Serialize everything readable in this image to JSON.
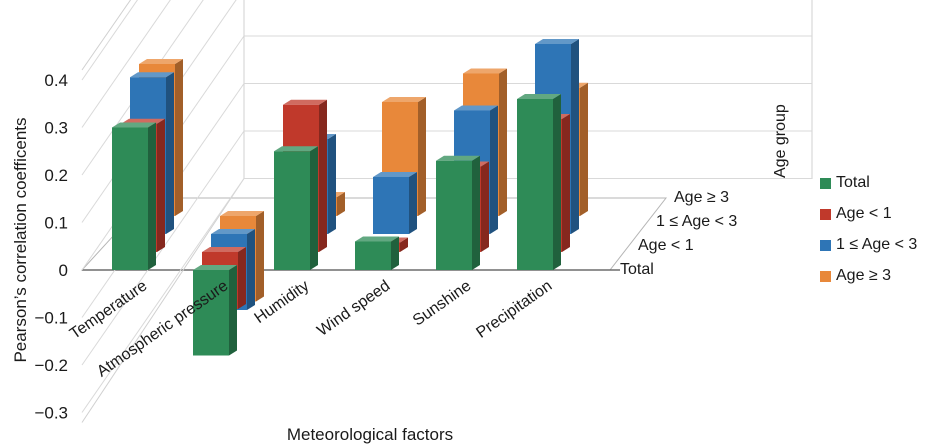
{
  "chart_data": {
    "type": "bar",
    "subtype": "3d-grouped",
    "title": "",
    "xlabel": "Meteorological factors",
    "ylabel": "Pearson’s correlation coefficents",
    "depth_label": "Age group",
    "categories": [
      "Temperature",
      "Atmospheric pressure",
      "Humidity",
      "Wind speed",
      "Sunshine",
      "Precipitation"
    ],
    "depth_categories": [
      "Total",
      "Age < 1",
      "1 ≤ Age < 3",
      "Age ≥ 3"
    ],
    "series": [
      {
        "name": "Total",
        "color": "#2e8b57",
        "values": [
          0.3,
          -0.18,
          0.25,
          0.06,
          0.23,
          0.36
        ]
      },
      {
        "name": "Age < 1",
        "color": "#c0392b",
        "values": [
          0.27,
          -0.12,
          0.31,
          0.02,
          0.18,
          0.28
        ]
      },
      {
        "name": "1 ≤ Age < 3",
        "color": "#2e75b6",
        "values": [
          0.33,
          -0.16,
          0.2,
          0.12,
          0.26,
          0.4
        ]
      },
      {
        "name": "Age ≥ 3",
        "color": "#e8883a",
        "values": [
          0.32,
          -0.18,
          0.04,
          0.24,
          0.3,
          0.27
        ]
      }
    ],
    "ylim": [
      -0.3,
      0.4
    ],
    "yticks": [
      "0.4",
      "0.3",
      "0.2",
      "0.1",
      "0",
      "−0.1",
      "−0.2",
      "−0.3"
    ],
    "ytick_values": [
      0.4,
      0.3,
      0.2,
      0.1,
      0,
      -0.1,
      -0.2,
      -0.3
    ],
    "grid": true,
    "legend": {
      "title": "Age group",
      "position": "right"
    }
  }
}
